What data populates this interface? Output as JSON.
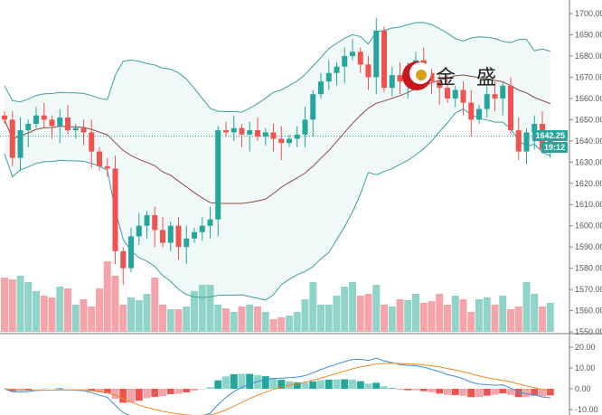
{
  "chart_data": {
    "type": "candlestick",
    "title": "",
    "price_axis": {
      "ylim": [
        1550,
        1700
      ],
      "ticks": [
        "1700.00",
        "1690.00",
        "1680.00",
        "1670.00",
        "1660.00",
        "1650.00",
        "1640.00",
        "1630.00",
        "1620.00",
        "1610.00",
        "1600.00",
        "1590.00",
        "1580.00",
        "1570.00",
        "1560.00",
        "1550.00"
      ]
    },
    "macd_axis": {
      "ylim": [
        -10,
        20
      ],
      "ticks": [
        "20.00",
        "10.00",
        "0.00",
        "-10.00"
      ]
    },
    "last_price": "1642.25",
    "countdown": "19:12",
    "closes": [
      1650,
      1632,
      1645,
      1648,
      1652,
      1650,
      1647,
      1651,
      1645,
      1646,
      1644,
      1635,
      1628,
      1627,
      1588,
      1580,
      1595,
      1600,
      1605,
      1598,
      1592,
      1600,
      1590,
      1594,
      1597,
      1600,
      1603,
      1645,
      1644,
      1646,
      1643,
      1645,
      1642,
      1644,
      1641,
      1639,
      1641,
      1643,
      1650,
      1662,
      1668,
      1672,
      1675,
      1680,
      1682,
      1676,
      1670,
      1692,
      1665,
      1671,
      1668,
      1675,
      1678,
      1672,
      1668,
      1665,
      1660,
      1664,
      1658,
      1650,
      1655,
      1662,
      1660,
      1666,
      1645,
      1635,
      1644,
      1648,
      1636,
      1642.25
    ],
    "volumes": [
      60,
      58,
      62,
      55,
      45,
      40,
      38,
      50,
      48,
      30,
      36,
      28,
      48,
      78,
      62,
      30,
      38,
      35,
      42,
      60,
      30,
      25,
      25,
      28,
      45,
      52,
      52,
      30,
      26,
      22,
      28,
      30,
      28,
      22,
      14,
      16,
      18,
      22,
      36,
      55,
      30,
      30,
      40,
      50,
      55,
      40,
      42,
      52,
      30,
      28,
      36,
      35,
      42,
      32,
      34,
      42,
      30,
      40,
      36,
      22,
      36,
      38,
      30,
      40,
      25,
      28,
      55,
      42,
      28,
      32
    ],
    "colors": {
      "up": "#26a69a",
      "down": "#ef5350",
      "up_vol": "#8fd3c9",
      "down_vol": "#f5a5aa",
      "band": "#3f9fa0",
      "mid": "#8b4a44",
      "macd": "#3f8fd8",
      "signal": "#f08a24"
    }
  },
  "logo": {
    "text": "金 盛"
  }
}
